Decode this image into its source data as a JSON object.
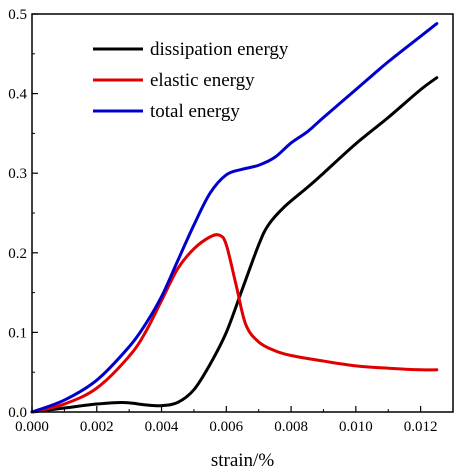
{
  "chart_data": {
    "type": "line",
    "xlabel": "strain/%",
    "ylabel": "",
    "xlim": [
      0.0,
      0.013
    ],
    "ylim": [
      0.0,
      0.5
    ],
    "x_ticks": [
      0.0,
      0.002,
      0.004,
      0.006,
      0.008,
      0.01,
      0.012
    ],
    "x_tick_labels": [
      "0.000",
      "0.002",
      "0.004",
      "0.006",
      "0.008",
      "0.010",
      "0.012"
    ],
    "y_ticks": [
      0.0,
      0.1,
      0.2,
      0.3,
      0.4,
      0.5
    ],
    "y_tick_labels": [
      "0.0",
      "0.1",
      "0.2",
      "0.3",
      "0.4",
      "0.5"
    ],
    "legend_position": "top-left",
    "grid": false,
    "series": [
      {
        "name": "dissipation energy",
        "color": "#000000",
        "x": [
          0.0,
          0.001,
          0.002,
          0.0028,
          0.0035,
          0.004,
          0.0045,
          0.005,
          0.0055,
          0.006,
          0.0065,
          0.007,
          0.0073,
          0.0078,
          0.0085,
          0.009,
          0.01,
          0.011,
          0.012,
          0.0125
        ],
        "y": [
          0.0,
          0.005,
          0.01,
          0.012,
          0.009,
          0.008,
          0.012,
          0.028,
          0.06,
          0.1,
          0.155,
          0.21,
          0.235,
          0.258,
          0.282,
          0.3,
          0.337,
          0.37,
          0.405,
          0.42
        ]
      },
      {
        "name": "elastic energy",
        "color": "#e00000",
        "x": [
          0.0,
          0.001,
          0.002,
          0.003,
          0.0035,
          0.004,
          0.0045,
          0.005,
          0.0055,
          0.0058,
          0.006,
          0.0063,
          0.0066,
          0.007,
          0.0075,
          0.008,
          0.009,
          0.01,
          0.011,
          0.012,
          0.0125
        ],
        "y": [
          0.0,
          0.01,
          0.03,
          0.07,
          0.1,
          0.14,
          0.18,
          0.205,
          0.22,
          0.222,
          0.21,
          0.16,
          0.11,
          0.088,
          0.077,
          0.071,
          0.064,
          0.058,
          0.055,
          0.053,
          0.053
        ]
      },
      {
        "name": "total energy",
        "color": "#0000cc",
        "x": [
          0.0,
          0.001,
          0.002,
          0.003,
          0.0035,
          0.004,
          0.0045,
          0.005,
          0.0055,
          0.006,
          0.0065,
          0.007,
          0.0075,
          0.008,
          0.0085,
          0.009,
          0.01,
          0.011,
          0.012,
          0.0125
        ],
        "y": [
          0.0,
          0.015,
          0.04,
          0.082,
          0.11,
          0.145,
          0.19,
          0.235,
          0.275,
          0.298,
          0.305,
          0.31,
          0.32,
          0.338,
          0.352,
          0.37,
          0.405,
          0.44,
          0.472,
          0.488
        ]
      }
    ]
  }
}
